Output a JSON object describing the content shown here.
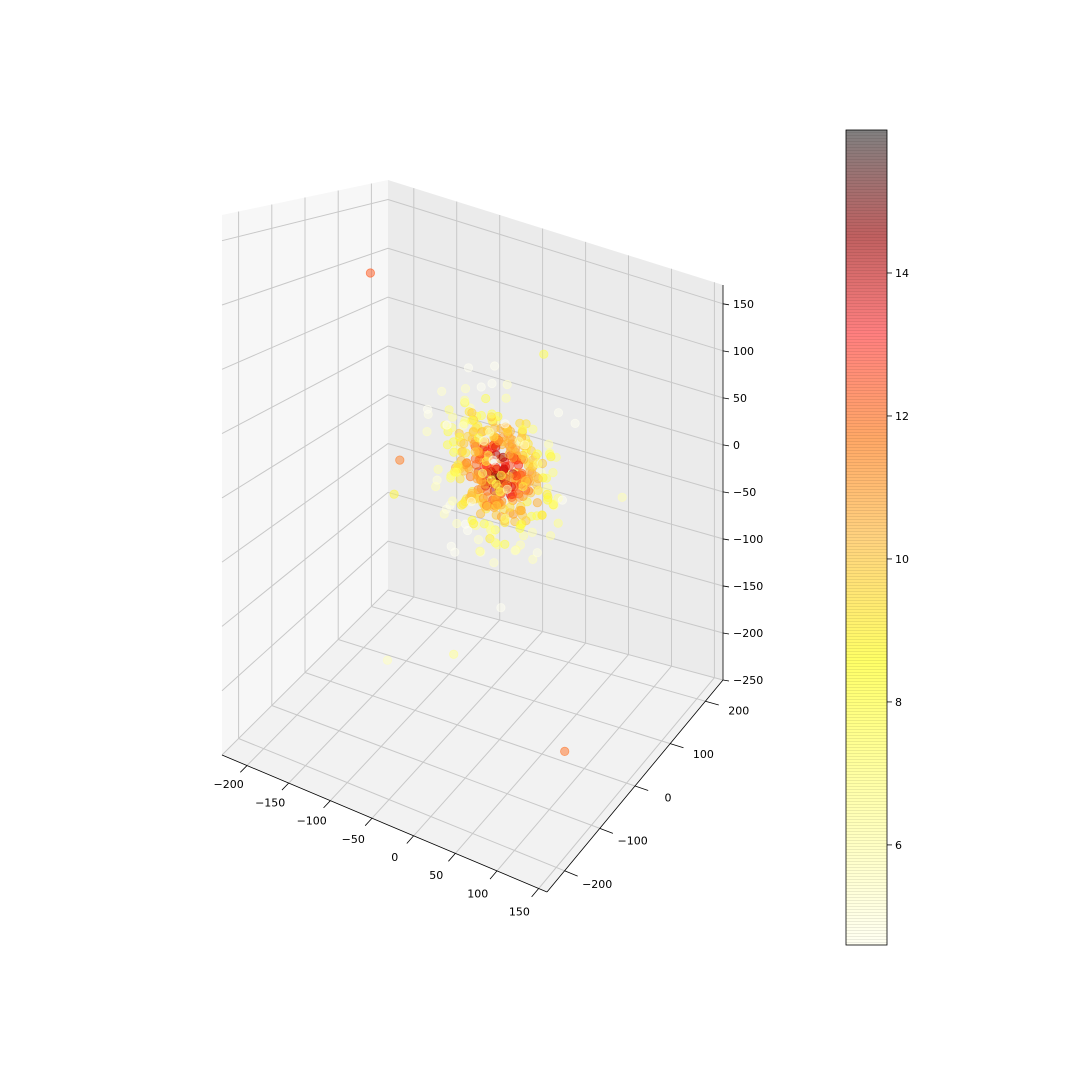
{
  "chart_data": {
    "type": "scatter",
    "subtype": "3d-scatter",
    "title": "",
    "xlabel": "",
    "ylabel": "",
    "zlabel": "",
    "xlim": [
      -230,
      160
    ],
    "ylim": [
      -250,
      250
    ],
    "zlim": [
      -250,
      170
    ],
    "x_ticks": [
      "−200",
      "−150",
      "−100",
      "−50",
      "0",
      "50",
      "100",
      "150"
    ],
    "y_ticks": [
      "−200",
      "−100",
      "0",
      "100",
      "200"
    ],
    "z_ticks": [
      "−250",
      "−200",
      "−150",
      "−100",
      "−50",
      "0",
      "50",
      "100",
      "150"
    ],
    "grid": true,
    "colormap": "hot_r",
    "point_alpha": 0.5,
    "colorbar": {
      "placement": "right",
      "range": [
        4.6,
        16.0
      ],
      "ticks": [
        "6",
        "8",
        "10",
        "12",
        "14"
      ],
      "tick_values": [
        6,
        8,
        10,
        12,
        14
      ]
    },
    "distribution": {
      "center": [
        0,
        0,
        0
      ],
      "core_spread": 30,
      "approx_point_count": 400
    },
    "outliers": [
      {
        "x": -200,
        "y": 120,
        "z": 100,
        "value": 12.5
      },
      {
        "x": 110,
        "y": -80,
        "z": -200,
        "value": 12.2
      },
      {
        "x": -110,
        "y": -20,
        "z": -20,
        "value": 12.0
      },
      {
        "x": -180,
        "y": 140,
        "z": -110,
        "value": 8.8
      },
      {
        "x": 120,
        "y": 60,
        "z": 0,
        "value": 6.5
      },
      {
        "x": -60,
        "y": -180,
        "z": -140,
        "value": 6.2
      },
      {
        "x": 40,
        "y": 30,
        "z": 120,
        "value": 8.3
      },
      {
        "x": -30,
        "y": -60,
        "z": -160,
        "value": 7.2
      }
    ]
  }
}
